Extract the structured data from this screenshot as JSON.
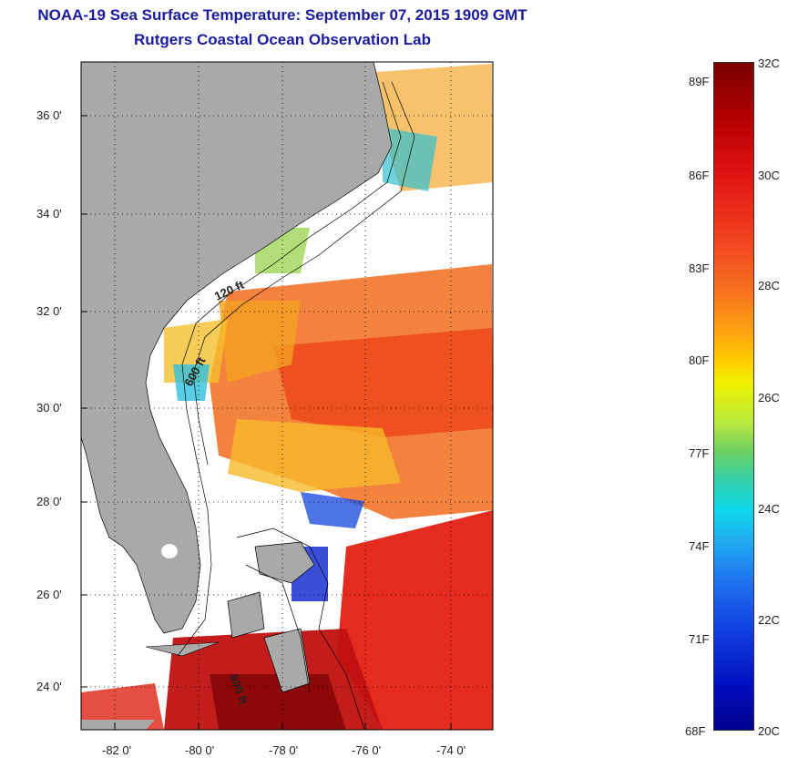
{
  "title": {
    "line1": "NOAA-19 Sea Surface Temperature:  September 07, 2015 1909 GMT",
    "line2": "Rutgers Coastal Ocean Observation Lab"
  },
  "map": {
    "lat_ticks": [
      "36 0'",
      "34 0'",
      "32 0'",
      "30 0'",
      "28 0'",
      "26 0'",
      "24 0'"
    ],
    "lon_ticks": [
      "-82 0'",
      "-80 0'",
      "-78 0'",
      "-76 0'",
      "-74 0'"
    ],
    "contour_labels": [
      "120 ft",
      "600 ft",
      "600 ft"
    ]
  },
  "colorbar": {
    "fahrenheit": [
      "89F",
      "86F",
      "83F",
      "80F",
      "77F",
      "74F",
      "71F",
      "68F"
    ],
    "celsius": [
      "32C",
      "30C",
      "28C",
      "26C",
      "24C",
      "22C",
      "20C"
    ]
  },
  "colors": {
    "title": "#1c1c9c",
    "land": "#a9a9a9",
    "ocean_missing": "#ffffff"
  }
}
